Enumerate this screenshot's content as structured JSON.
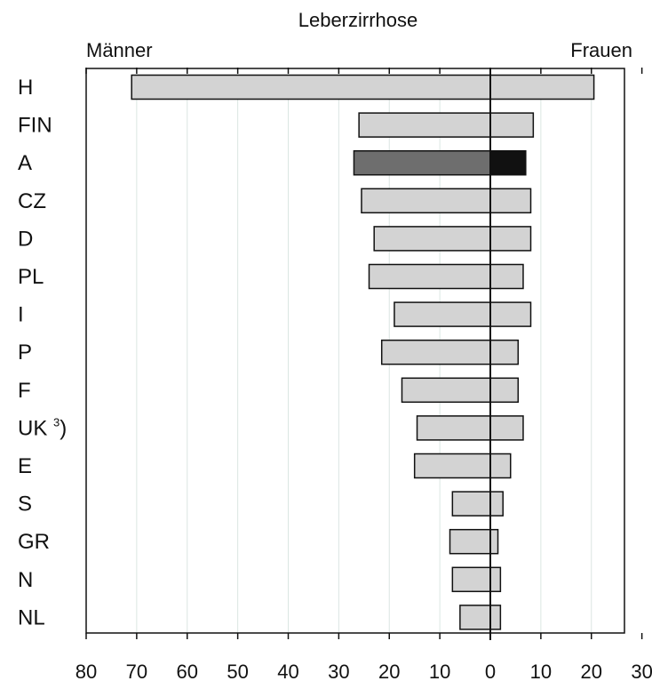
{
  "chart_data": {
    "type": "bar",
    "orientation": "horizontal",
    "layout": "butterfly",
    "title": "Leberzirrhose",
    "left_label": "Männer",
    "right_label": "Frauen",
    "categories": [
      "H",
      "FIN",
      "A",
      "CZ",
      "D",
      "PL",
      "I",
      "P",
      "F",
      "UK 3)",
      "E",
      "S",
      "GR",
      "N",
      "NL"
    ],
    "highlight_category": "A",
    "series": [
      {
        "name": "Männer",
        "side": "left",
        "values": [
          71,
          26,
          27,
          25.5,
          23,
          24,
          19,
          21.5,
          17.5,
          14.5,
          15,
          7.5,
          8,
          7.5,
          6
        ]
      },
      {
        "name": "Frauen",
        "side": "right",
        "values": [
          20.5,
          8.5,
          7,
          8,
          8,
          6.5,
          8,
          5.5,
          5.5,
          6.5,
          4,
          2.5,
          1.5,
          2,
          2
        ]
      }
    ],
    "x_ticks_left": [
      "80",
      "70",
      "60",
      "50",
      "40",
      "30",
      "20",
      "10"
    ],
    "x_ticks_right": [
      "0",
      "10",
      "20",
      "30"
    ],
    "xlim_left": [
      80,
      0
    ],
    "xlim_right": [
      0,
      30
    ],
    "grid": "vertical",
    "colors": {
      "bar": "#d3d3d3",
      "highlight_left": "#6e6e6e",
      "highlight_right": "#111111",
      "grid": "#dbe6e2"
    }
  }
}
